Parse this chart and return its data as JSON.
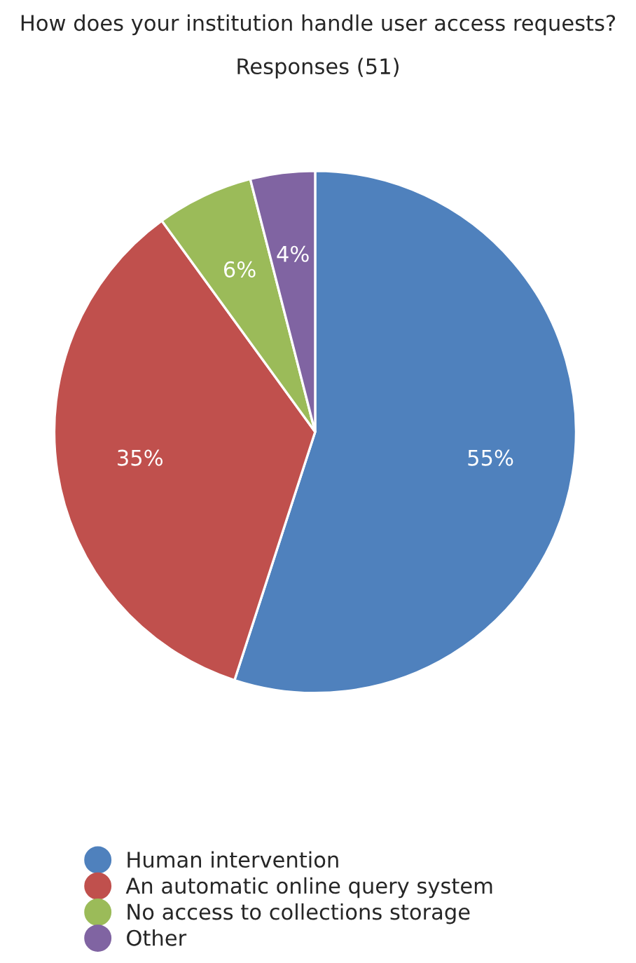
{
  "chart_data": {
    "type": "pie",
    "title": "How does your institution handle user access requests?",
    "subtitle": "Responses (51)",
    "categories": [
      "Human intervention",
      "An automatic online query system",
      "No access to collections storage",
      "Other"
    ],
    "values": [
      55,
      35,
      6,
      4
    ],
    "colors": [
      "#4f81bd",
      "#c0504d",
      "#9bbb59",
      "#8064a2"
    ],
    "value_labels": [
      "55%",
      "35%",
      "6%",
      "4%"
    ],
    "legend": "bottom"
  }
}
